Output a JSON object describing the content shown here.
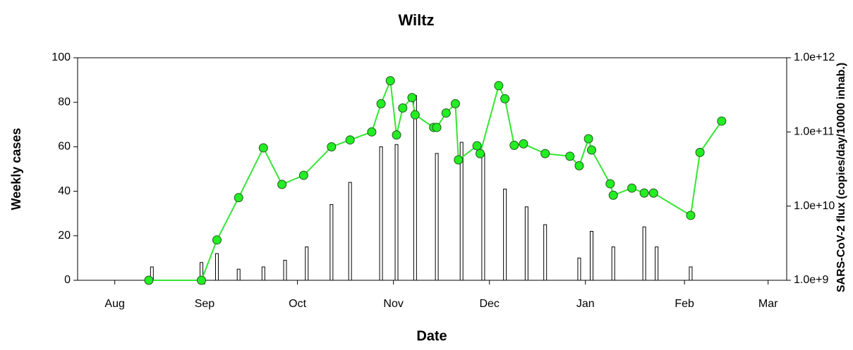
{
  "chart_data": {
    "type": "combo",
    "title": "Wiltz",
    "xlabel": "Date",
    "ylabel": "Weekly cases",
    "y2label": "SARS-CoV-2 flux (copies/day/10000 inhab.)",
    "xlim": [
      0,
      229
    ],
    "xticks": [
      {
        "value": 12,
        "label": "Aug"
      },
      {
        "value": 41,
        "label": "Sep"
      },
      {
        "value": 71,
        "label": "Oct"
      },
      {
        "value": 102,
        "label": "Nov"
      },
      {
        "value": 133,
        "label": "Dec"
      },
      {
        "value": 164,
        "label": "Jan"
      },
      {
        "value": 196,
        "label": "Feb"
      },
      {
        "value": 223,
        "label": "Mar"
      }
    ],
    "ylim": [
      0,
      100
    ],
    "yticks": [
      0,
      20,
      40,
      60,
      80,
      100
    ],
    "y2lim": [
      1000000000,
      1000000000000
    ],
    "y2scale": "log",
    "y2ticks": [
      {
        "value": 1000000000,
        "label": "1.0e+9"
      },
      {
        "value": 10000000000,
        "label": "1.0e+10"
      },
      {
        "value": 100000000000,
        "label": "1.0e+11"
      },
      {
        "value": 1000000000000,
        "label": "1.0e+12"
      }
    ],
    "series": [
      {
        "type": "bar",
        "color": "#000000",
        "x": [
          24,
          40,
          45,
          52,
          60,
          67,
          74,
          82,
          88,
          98,
          103,
          109,
          116,
          124,
          131,
          138,
          145,
          151,
          162,
          166,
          173,
          183,
          187,
          198
        ],
        "values": [
          6,
          8,
          12,
          5,
          6,
          9,
          15,
          34,
          44,
          60,
          61,
          83,
          57,
          62,
          57,
          41,
          33,
          25,
          10,
          22,
          15,
          24,
          15,
          6
        ]
      },
      {
        "type": "line",
        "axis": "y2",
        "color": "#33e633",
        "marker_color": "#22ee22",
        "x": [
          23,
          40,
          45,
          52,
          60,
          66,
          73,
          82,
          88,
          95,
          98,
          101,
          103,
          105,
          108,
          109,
          115,
          116,
          119,
          122,
          123,
          129,
          130,
          136,
          138,
          141,
          144,
          151,
          159,
          162,
          165,
          166,
          172,
          173,
          179,
          183,
          186,
          198,
          201,
          208
        ],
        "values": [
          1000000000,
          1000000000,
          3500000000,
          13000000000,
          61000000000,
          19600000000,
          26000000000,
          63000000000,
          78000000000,
          100000000000,
          240000000000,
          490000000000,
          91000000000,
          210000000000,
          290000000000,
          170000000000,
          115000000000,
          115000000000,
          180000000000,
          240000000000,
          42000000000,
          65000000000,
          51000000000,
          420000000000,
          280000000000,
          66000000000,
          69000000000,
          51000000000,
          47000000000,
          35000000000,
          81000000000,
          57000000000,
          20000000000,
          14000000000,
          17500000000,
          15000000000,
          15000000000,
          7500000000,
          53000000000,
          140000000000
        ]
      }
    ]
  }
}
